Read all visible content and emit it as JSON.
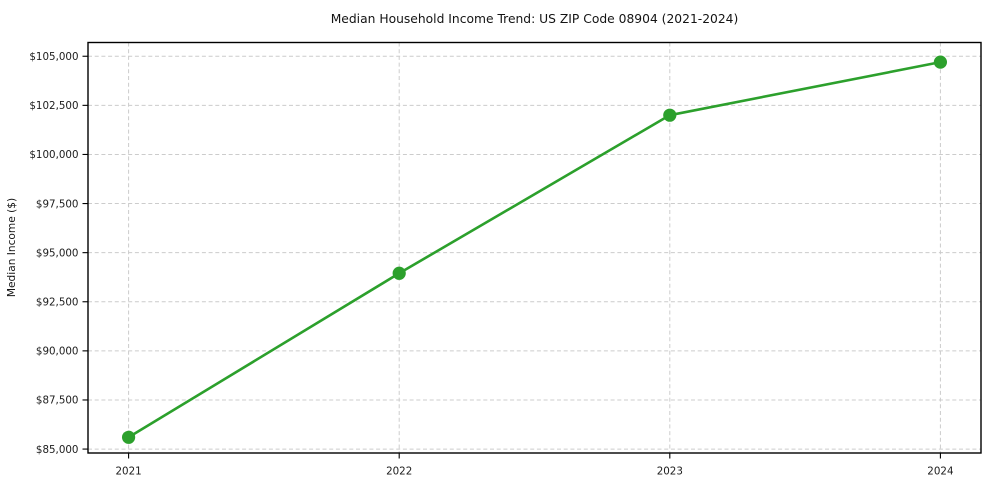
{
  "chart_data": {
    "type": "line",
    "title": "Median Household Income Trend: US ZIP Code 08904 (2021-2024)",
    "xlabel": "",
    "ylabel": "Median Income ($)",
    "x": [
      2021,
      2022,
      2023,
      2024
    ],
    "categories": [
      "2021",
      "2022",
      "2023",
      "2024"
    ],
    "series": [
      {
        "name": "Median Household Income",
        "values": [
          85600,
          93950,
          102000,
          104700
        ],
        "color": "#2ca02c",
        "marker": "circle"
      }
    ],
    "xticks": {
      "values": [
        2021,
        2022,
        2023,
        2024
      ],
      "labels": [
        "2021",
        "2022",
        "2023",
        "2024"
      ]
    },
    "yticks": {
      "values": [
        85000,
        87500,
        90000,
        92500,
        95000,
        97500,
        100000,
        102500,
        105000
      ],
      "labels": [
        "$85,000",
        "$87,500",
        "$90,000",
        "$92,500",
        "$95,000",
        "$97,500",
        "$100,000",
        "$102,500",
        "$105,000"
      ]
    },
    "xlim": [
      2020.85,
      2024.15
    ],
    "ylim": [
      84800,
      105700
    ],
    "grid": true,
    "grid_style": "dashed",
    "legend": false,
    "colors": {
      "line": "#2ca02c",
      "grid": "#cccccc",
      "axis": "#000000",
      "text": "#1c1c1c",
      "background": "#ffffff"
    }
  }
}
